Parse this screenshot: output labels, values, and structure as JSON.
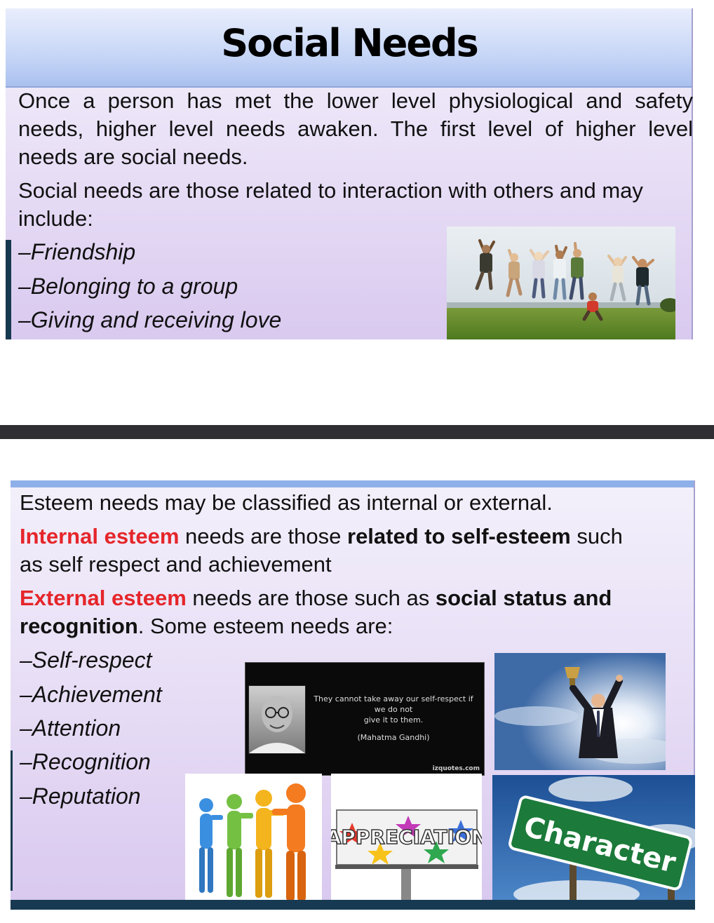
{
  "slide1": {
    "title": "Social Needs",
    "paragraph1_lines": [
      "Once a person has met the lower level physiological and safety",
      "needs,  higher level needs awaken. The first level of higher level",
      "needs are  social needs."
    ],
    "paragraph2_lines": [
      "Social needs are those related to interaction with others and may",
      "include:"
    ],
    "list": [
      "–Friendship",
      "–Belonging to a group",
      "–Giving and receiving love"
    ]
  },
  "slide2": {
    "intro": "Esteem needs may be classified as internal or external.",
    "internal": {
      "term": "Internal esteem",
      "t1": " needs are those ",
      "bold": "related to self-esteem",
      "t2": " such",
      "line2": "as self respect and achievement"
    },
    "external": {
      "term": "External esteem",
      "t1": " needs are those such as ",
      "bold1": "social status and",
      "bold2": "recognition",
      "t2": ".  Some esteem needs are:"
    },
    "list": [
      "–Self-respect",
      "–Achievement",
      "–Attention",
      "–Recognition",
      "–Reputation"
    ],
    "quote": {
      "text_line1": "They cannot take away our self-respect if we do not",
      "text_line2": "give it to them.",
      "author": "(Mahatma Gandhi)",
      "site": "izquotes.com"
    },
    "billboard_text": "APPRECIATION",
    "sign_text": "Character"
  },
  "colors": {
    "accent_red": "#e5252a",
    "title_blue": "#a9c0ee",
    "bar_dark": "#173a52"
  }
}
